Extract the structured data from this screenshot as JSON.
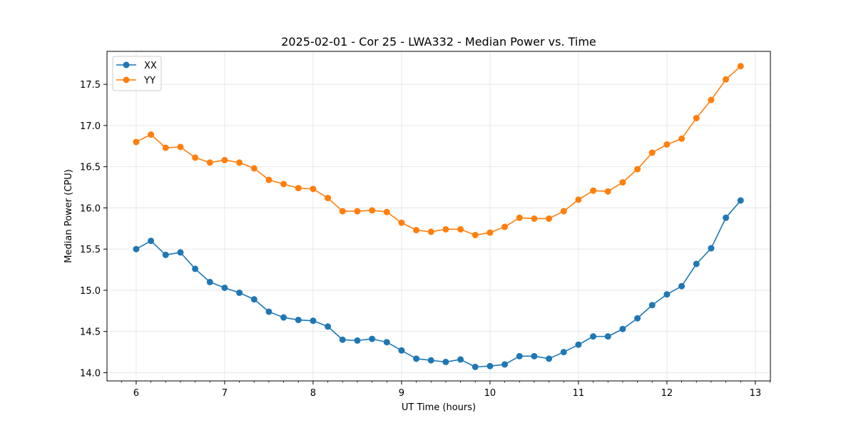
{
  "chart_data": {
    "type": "line",
    "title": "2025-02-01 - Cor 25 - LWA332 - Median Power vs. Time",
    "xlabel": "UT Time (hours)",
    "ylabel": "Median Power (CPU)",
    "xlim": [
      5.67,
      13.17
    ],
    "ylim": [
      13.9,
      17.9
    ],
    "xticks": [
      6,
      7,
      8,
      9,
      10,
      11,
      12,
      13
    ],
    "xtick_labels": [
      "6",
      "7",
      "8",
      "9",
      "10",
      "11",
      "12",
      "13"
    ],
    "yticks": [
      14.0,
      14.5,
      15.0,
      15.5,
      16.0,
      16.5,
      17.0,
      17.5
    ],
    "ytick_labels": [
      "14.0",
      "14.5",
      "15.0",
      "15.5",
      "16.0",
      "16.5",
      "17.0",
      "17.5"
    ],
    "grid": true,
    "legend_position": "top-left",
    "x": [
      6.0,
      6.1667,
      6.3333,
      6.5,
      6.6667,
      6.8333,
      7.0,
      7.1667,
      7.3333,
      7.5,
      7.6667,
      7.8333,
      8.0,
      8.1667,
      8.3333,
      8.5,
      8.6667,
      8.8333,
      9.0,
      9.1667,
      9.3333,
      9.5,
      9.6667,
      9.8333,
      10.0,
      10.1667,
      10.3333,
      10.5,
      10.6667,
      10.8333,
      11.0,
      11.1667,
      11.3333,
      11.5,
      11.6667,
      11.8333,
      12.0,
      12.1667,
      12.3333,
      12.5,
      12.6667,
      12.8333
    ],
    "series": [
      {
        "name": "XX",
        "color": "#1f77b4",
        "values": [
          15.5,
          15.6,
          15.43,
          15.46,
          15.26,
          15.1,
          15.03,
          14.97,
          14.89,
          14.74,
          14.67,
          14.64,
          14.63,
          14.56,
          14.4,
          14.39,
          14.41,
          14.37,
          14.27,
          14.17,
          14.15,
          14.13,
          14.16,
          14.07,
          14.08,
          14.1,
          14.2,
          14.2,
          14.17,
          14.25,
          14.34,
          14.44,
          14.44,
          14.53,
          14.66,
          14.82,
          14.95,
          15.05,
          15.32,
          15.51,
          15.88,
          16.09
        ]
      },
      {
        "name": "YY",
        "color": "#ff7f0e",
        "values": [
          16.8,
          16.89,
          16.73,
          16.74,
          16.61,
          16.55,
          16.58,
          16.55,
          16.48,
          16.34,
          16.29,
          16.24,
          16.23,
          16.12,
          15.96,
          15.96,
          15.97,
          15.95,
          15.82,
          15.73,
          15.71,
          15.74,
          15.74,
          15.67,
          15.7,
          15.77,
          15.88,
          15.87,
          15.87,
          15.96,
          16.1,
          16.21,
          16.2,
          16.31,
          16.47,
          16.67,
          16.77,
          16.84,
          17.09,
          17.31,
          17.56,
          17.72
        ]
      }
    ]
  }
}
